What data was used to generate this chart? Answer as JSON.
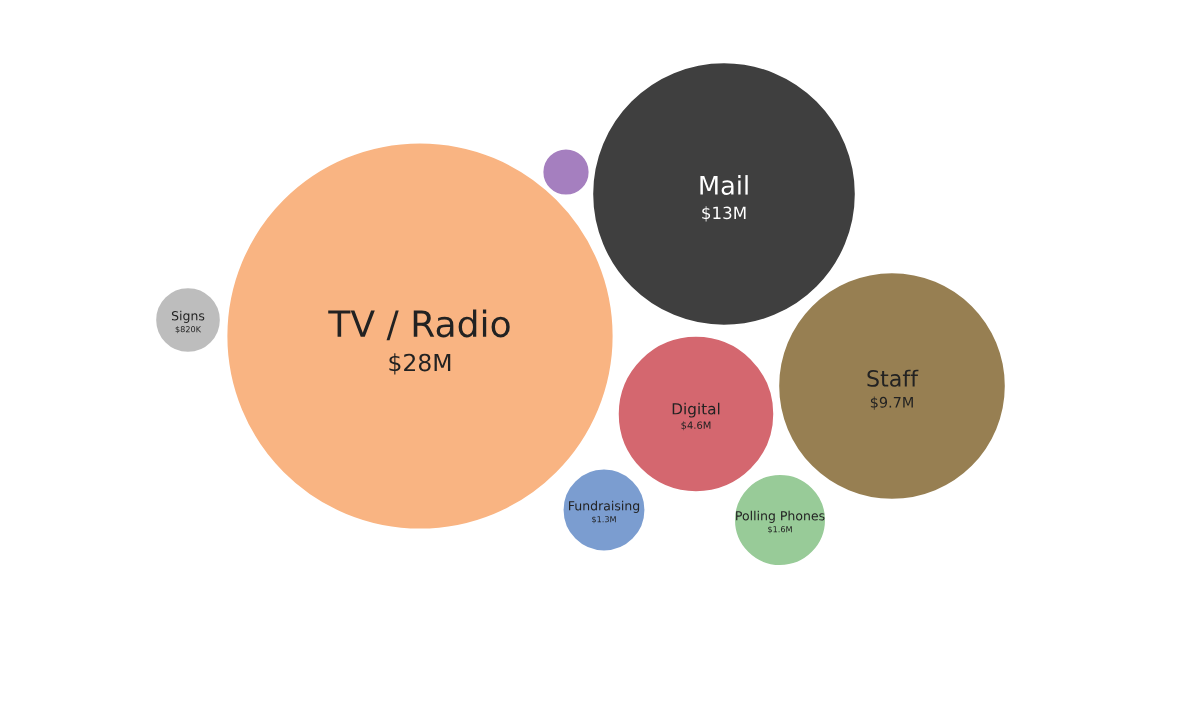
{
  "chart_data": {
    "type": "other",
    "categories": [
      "TV / Radio",
      "Mail",
      "Staff",
      "Digital",
      "Polling Phones",
      "Fundraising",
      "Signs",
      null
    ],
    "values": [
      28000000,
      13000000,
      9700000,
      4600000,
      1600000,
      1300000,
      820000,
      null
    ],
    "value_labels": [
      "$28M",
      "$13M",
      "$9.7M",
      "$4.6M",
      "$1.6M",
      "$1.3M",
      "$820K",
      null
    ],
    "colors": [
      "#f9b482",
      "#3f3f3f",
      "#977f52",
      "#d4676f",
      "#98cb98",
      "#7b9dd0",
      "#bdbdbd",
      "#a57fbf"
    ]
  }
}
